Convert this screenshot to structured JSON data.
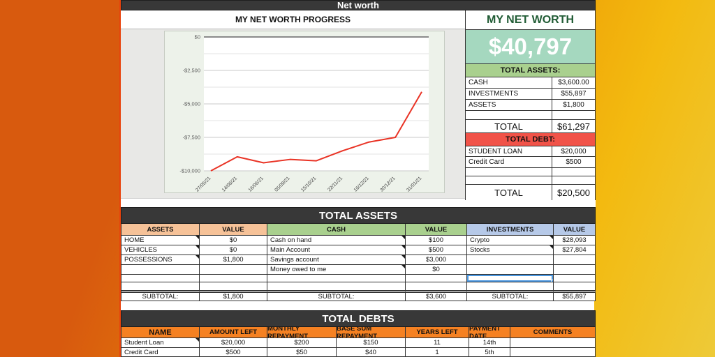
{
  "page_title": "Net worth",
  "chart_title": "MY NET WORTH PROGRESS",
  "chart_data": {
    "type": "line",
    "title": "MY NET WORTH PROGRESS",
    "x": [
      "27/05/21",
      "14/06/21",
      "16/06/21",
      "05/09/21",
      "15/10/21",
      "22/11/21",
      "16/12/21",
      "30/12/21",
      "31/01/21"
    ],
    "values": [
      -10000,
      -8950,
      -9400,
      -9150,
      -9250,
      -8500,
      -7850,
      -7500,
      -4100
    ],
    "ylim": [
      -10000,
      0
    ],
    "ytick_labels": [
      "$0",
      "-$2,500",
      "-$5,000",
      "-$7,500",
      "-$10,000"
    ],
    "grid": "on",
    "legend": "none",
    "line_color": "#e93325"
  },
  "summary": {
    "title": "MY NET WORTH",
    "net_worth_value": "$40,797",
    "assets_header": "TOTAL ASSETS:",
    "assets_rows": [
      [
        "CASH",
        "$3,600.00"
      ],
      [
        "INVESTMENTS",
        "$55,897"
      ],
      [
        "ASSETS",
        "$1,800"
      ]
    ],
    "assets_total_label": "TOTAL",
    "assets_total_value": "$61,297",
    "debt_header": "TOTAL DEBT:",
    "debt_rows": [
      [
        "STUDENT LOAN",
        "$20,000"
      ],
      [
        "Credit Card",
        "$500"
      ]
    ],
    "debt_total_label": "TOTAL",
    "debt_total_value": "$20,500"
  },
  "assets_section": {
    "title": "TOTAL ASSETS",
    "columns": [
      "ASSETS",
      "VALUE",
      "CASH",
      "VALUE",
      "INVESTMENTS",
      "VALUE"
    ],
    "rows": [
      [
        "HOME",
        "$0",
        "Cash on hand",
        "$100",
        "Crypto",
        "$28,093"
      ],
      [
        "VEHICLES",
        "$0",
        "Main Account",
        "$500",
        "Stocks",
        "$27,804"
      ],
      [
        "POSSESSIONS",
        "$1,800",
        "Savings account",
        "$3,000",
        "",
        ""
      ],
      [
        "",
        "",
        "Money owed to me",
        "$0",
        "",
        ""
      ]
    ],
    "subtotal_label": "SUBTOTAL:",
    "subtotals": [
      "$1,800",
      "$3,600",
      "$55,897"
    ]
  },
  "debts_section": {
    "title": "TOTAL DEBTS",
    "columns": [
      "NAME",
      "AMOUNT LEFT",
      "MONTHLY REPAYMENT",
      "BASE SUM REPAYMENT",
      "YEARS LEFT",
      "PAYMENT DATE",
      "COMMENTS"
    ],
    "rows": [
      [
        "Student Loan",
        "$20,000",
        "$200",
        "$150",
        "11",
        "14th",
        ""
      ],
      [
        "Credit Card",
        "$500",
        "$50",
        "$40",
        "1",
        "5th",
        ""
      ]
    ]
  },
  "colors": {
    "accent_green_header": "#a9d08e",
    "accent_red_header": "#f15349",
    "accent_peach_header": "#f6c298",
    "accent_blue_header": "#b6c9e8",
    "accent_orange_header": "#f58122",
    "net_worth_cell": "#a5d8bf",
    "title_bar": "#383838",
    "chart_line": "#e93325",
    "selection_blue": "#4a97e0",
    "background_left": "#d85a0e",
    "background_right": "#f3ba10"
  }
}
